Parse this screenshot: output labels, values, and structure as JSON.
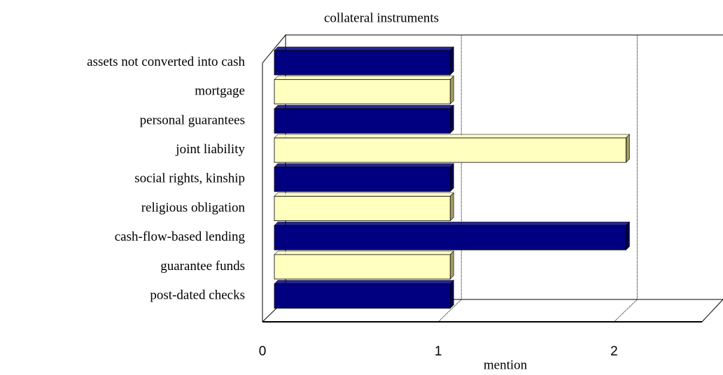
{
  "chart_data": {
    "type": "bar",
    "orientation": "horizontal",
    "title": "collateral instruments",
    "x_label": "mention",
    "categories": [
      "assets not converted into cash",
      "mortgage",
      "personal guarantees",
      "joint liability",
      "social rights, kinship",
      "religious obligation",
      "cash-flow-based lending",
      "guarantee funds",
      "post-dated checks"
    ],
    "values": [
      1,
      1,
      1,
      2,
      1,
      1,
      2,
      1,
      1
    ],
    "colors": [
      "#000080",
      "#ffffc0",
      "#000080",
      "#ffffc0",
      "#000080",
      "#ffffc0",
      "#000080",
      "#ffffc0",
      "#000080"
    ],
    "xlim": [
      0,
      2.5
    ],
    "xticks": [
      0,
      1,
      2
    ],
    "grid": true
  }
}
